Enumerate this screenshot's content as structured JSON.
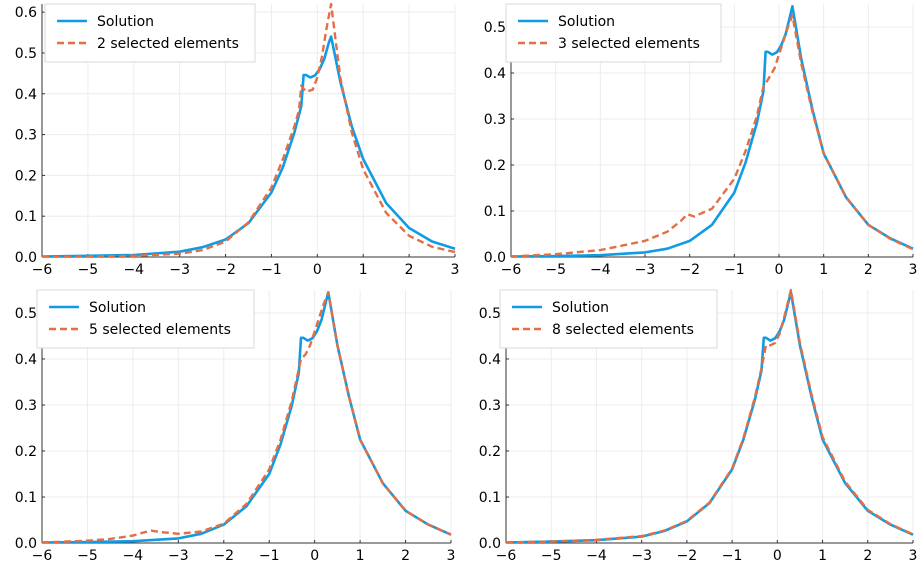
{
  "colors": {
    "solution": "#0f9ce4",
    "approximation": "#e26f46",
    "grid": "#ececec",
    "axis": "#333333",
    "legend_border": "#d9d9d9"
  },
  "chart_data": [
    {
      "type": "line",
      "xlim": [
        -6,
        3
      ],
      "ylim": [
        0,
        0.62
      ],
      "xticks": [
        -6,
        -5,
        -4,
        -3,
        -2,
        -1,
        0,
        1,
        2,
        3
      ],
      "xtick_labels": [
        "−6",
        "−5",
        "−4",
        "−3",
        "−2",
        "−1",
        "0",
        "1",
        "2",
        "3"
      ],
      "yticks": [
        0,
        0.1,
        0.2,
        0.3,
        0.4,
        0.5,
        0.6
      ],
      "ytick_labels": [
        "0.0",
        "0.1",
        "0.2",
        "0.3",
        "0.4",
        "0.5",
        "0.6"
      ],
      "grid": true,
      "legend_position": "top-left",
      "series": [
        {
          "name": "Solution",
          "style": "solid",
          "x": [
            -6,
            -5,
            -4,
            -3,
            -2.5,
            -2,
            -1.5,
            -1,
            -0.75,
            -0.5,
            -0.35,
            -0.3,
            -0.25,
            -0.15,
            -0.05,
            0.05,
            0.15,
            0.25,
            0.3,
            0.5,
            0.75,
            1,
            1.5,
            2,
            2.5,
            3
          ],
          "y": [
            0.001,
            0.003,
            0.005,
            0.013,
            0.024,
            0.043,
            0.083,
            0.158,
            0.22,
            0.305,
            0.37,
            0.446,
            0.446,
            0.44,
            0.445,
            0.46,
            0.485,
            0.525,
            0.54,
            0.43,
            0.32,
            0.24,
            0.132,
            0.071,
            0.038,
            0.02
          ]
        },
        {
          "name": "2 selected elements",
          "style": "dashed",
          "x": [
            -6,
            -5,
            -4,
            -3,
            -2.5,
            -2,
            -1.5,
            -1,
            -0.75,
            -0.5,
            -0.4,
            -0.35,
            -0.25,
            -0.1,
            0,
            0.1,
            0.2,
            0.3,
            0.5,
            0.75,
            1,
            1.5,
            2,
            2.5,
            3
          ],
          "y": [
            0.0,
            0.001,
            0.003,
            0.008,
            0.017,
            0.038,
            0.085,
            0.17,
            0.24,
            0.32,
            0.36,
            0.42,
            0.405,
            0.41,
            0.44,
            0.49,
            0.56,
            0.62,
            0.44,
            0.305,
            0.215,
            0.108,
            0.052,
            0.025,
            0.012
          ]
        }
      ]
    },
    {
      "type": "line",
      "xlim": [
        -6,
        3
      ],
      "ylim": [
        0,
        0.55
      ],
      "xticks": [
        -6,
        -5,
        -4,
        -3,
        -2,
        -1,
        0,
        1,
        2,
        3
      ],
      "xtick_labels": [
        "−6",
        "−5",
        "−4",
        "−3",
        "−2",
        "−1",
        "0",
        "1",
        "2",
        "3"
      ],
      "yticks": [
        0,
        0.1,
        0.2,
        0.3,
        0.4,
        0.5
      ],
      "ytick_labels": [
        "0.0",
        "0.1",
        "0.2",
        "0.3",
        "0.4",
        "0.5"
      ],
      "grid": true,
      "legend_position": "top-left",
      "series": [
        {
          "name": "Solution",
          "style": "solid",
          "x": [
            -6,
            -5,
            -4,
            -3,
            -2.5,
            -2,
            -1.5,
            -1,
            -0.75,
            -0.5,
            -0.35,
            -0.3,
            -0.25,
            -0.15,
            -0.05,
            0.05,
            0.15,
            0.25,
            0.3,
            0.5,
            0.75,
            1,
            1.5,
            2,
            2.5,
            3
          ],
          "y": [
            0.001,
            0.002,
            0.004,
            0.01,
            0.018,
            0.035,
            0.07,
            0.14,
            0.205,
            0.29,
            0.36,
            0.446,
            0.446,
            0.44,
            0.445,
            0.46,
            0.485,
            0.525,
            0.545,
            0.43,
            0.32,
            0.225,
            0.13,
            0.07,
            0.04,
            0.018
          ]
        },
        {
          "name": "3 selected elements",
          "style": "dashed",
          "x": [
            -6,
            -5,
            -4,
            -3,
            -2.5,
            -2.2,
            -2.05,
            -1.9,
            -1.5,
            -1,
            -0.75,
            -0.5,
            -0.35,
            -0.25,
            -0.1,
            0,
            0.1,
            0.2,
            0.3,
            0.5,
            0.75,
            1,
            1.5,
            2,
            2.5,
            3
          ],
          "y": [
            0.001,
            0.006,
            0.015,
            0.035,
            0.055,
            0.078,
            0.093,
            0.088,
            0.105,
            0.17,
            0.23,
            0.305,
            0.37,
            0.385,
            0.41,
            0.44,
            0.47,
            0.5,
            0.525,
            0.42,
            0.315,
            0.225,
            0.13,
            0.07,
            0.039,
            0.017
          ]
        }
      ]
    },
    {
      "type": "line",
      "xlim": [
        -6,
        3
      ],
      "ylim": [
        0,
        0.55
      ],
      "xticks": [
        -6,
        -5,
        -4,
        -3,
        -2,
        -1,
        0,
        1,
        2,
        3
      ],
      "xtick_labels": [
        "−6",
        "−5",
        "−4",
        "−3",
        "−2",
        "−1",
        "0",
        "1",
        "2",
        "3"
      ],
      "yticks": [
        0,
        0.1,
        0.2,
        0.3,
        0.4,
        0.5
      ],
      "ytick_labels": [
        "0.0",
        "0.1",
        "0.2",
        "0.3",
        "0.4",
        "0.5"
      ],
      "grid": true,
      "legend_position": "top-left",
      "series": [
        {
          "name": "Solution",
          "style": "solid",
          "x": [
            -6,
            -5,
            -4,
            -3,
            -2.5,
            -2,
            -1.5,
            -1,
            -0.75,
            -0.5,
            -0.35,
            -0.3,
            -0.25,
            -0.15,
            -0.05,
            0.05,
            0.15,
            0.25,
            0.3,
            0.5,
            0.75,
            1,
            1.5,
            2,
            2.5,
            3
          ],
          "y": [
            0.001,
            0.002,
            0.004,
            0.01,
            0.02,
            0.04,
            0.08,
            0.15,
            0.215,
            0.3,
            0.37,
            0.446,
            0.446,
            0.44,
            0.445,
            0.46,
            0.485,
            0.525,
            0.545,
            0.43,
            0.32,
            0.225,
            0.13,
            0.07,
            0.04,
            0.018
          ]
        },
        {
          "name": "5 selected elements",
          "style": "dashed",
          "x": [
            -6,
            -5,
            -4.5,
            -4,
            -3.8,
            -3.6,
            -3.4,
            -3,
            -2.5,
            -2,
            -1.5,
            -1,
            -0.75,
            -0.5,
            -0.3,
            -0.2,
            -0.1,
            0,
            0.1,
            0.2,
            0.3,
            0.5,
            0.75,
            1,
            1.5,
            2,
            2.5,
            3
          ],
          "y": [
            0.001,
            0.005,
            0.009,
            0.016,
            0.022,
            0.027,
            0.024,
            0.02,
            0.025,
            0.042,
            0.085,
            0.16,
            0.225,
            0.31,
            0.4,
            0.41,
            0.43,
            0.46,
            0.49,
            0.52,
            0.545,
            0.43,
            0.32,
            0.225,
            0.13,
            0.07,
            0.04,
            0.018
          ]
        }
      ]
    },
    {
      "type": "line",
      "xlim": [
        -6,
        3
      ],
      "ylim": [
        0,
        0.55
      ],
      "xticks": [
        -6,
        -5,
        -4,
        -3,
        -2,
        -1,
        0,
        1,
        2,
        3
      ],
      "xtick_labels": [
        "−6",
        "−5",
        "−4",
        "−3",
        "−2",
        "−1",
        "0",
        "1",
        "2",
        "3"
      ],
      "yticks": [
        0,
        0.1,
        0.2,
        0.3,
        0.4,
        0.5
      ],
      "ytick_labels": [
        "0.0",
        "0.1",
        "0.2",
        "0.3",
        "0.4",
        "0.5"
      ],
      "grid": true,
      "legend_position": "top-left",
      "series": [
        {
          "name": "Solution",
          "style": "solid",
          "x": [
            -6,
            -5,
            -4,
            -3,
            -2.5,
            -2,
            -1.5,
            -1,
            -0.75,
            -0.5,
            -0.35,
            -0.3,
            -0.25,
            -0.15,
            -0.05,
            0.05,
            0.15,
            0.25,
            0.3,
            0.5,
            0.75,
            1,
            1.5,
            2,
            2.5,
            3
          ],
          "y": [
            0.001,
            0.003,
            0.006,
            0.014,
            0.026,
            0.047,
            0.087,
            0.16,
            0.225,
            0.31,
            0.375,
            0.446,
            0.446,
            0.44,
            0.445,
            0.46,
            0.485,
            0.525,
            0.545,
            0.43,
            0.32,
            0.225,
            0.13,
            0.07,
            0.04,
            0.018
          ]
        },
        {
          "name": "8 selected elements",
          "style": "dashed",
          "x": [
            -6,
            -5,
            -4,
            -3,
            -2.5,
            -2,
            -1.5,
            -1,
            -0.75,
            -0.5,
            -0.35,
            -0.25,
            -0.15,
            -0.05,
            0.05,
            0.15,
            0.3,
            0.5,
            0.75,
            1,
            1.5,
            2,
            2.5,
            3
          ],
          "y": [
            0.001,
            0.003,
            0.007,
            0.015,
            0.027,
            0.048,
            0.088,
            0.162,
            0.228,
            0.315,
            0.38,
            0.43,
            0.43,
            0.435,
            0.455,
            0.49,
            0.55,
            0.435,
            0.325,
            0.23,
            0.133,
            0.072,
            0.041,
            0.019
          ]
        }
      ]
    }
  ]
}
